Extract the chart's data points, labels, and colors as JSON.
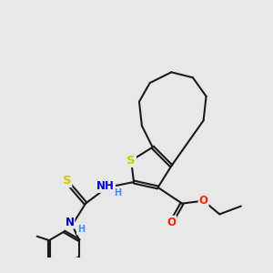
{
  "background_color": "#e8e8e8",
  "bond_color": "#1a1a1a",
  "bond_width": 1.5,
  "atom_colors": {
    "S": "#cccc00",
    "N": "#0000cc",
    "O": "#ff2200",
    "C": "#1a1a1a",
    "H": "#4488ff"
  },
  "font_size_atom": 8.5,
  "font_size_H": 7.0,
  "xlim": [
    0,
    10
  ],
  "ylim": [
    1,
    10
  ]
}
